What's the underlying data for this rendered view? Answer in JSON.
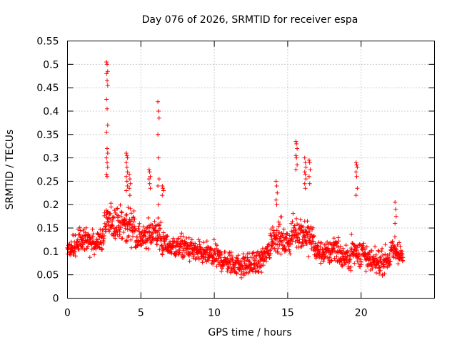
{
  "chart_data": {
    "type": "scatter",
    "title": "Day 076 of 2026, SRMTID for receiver espa",
    "xlabel": "GPS time / hours",
    "ylabel": "SRMTID / TECUs",
    "xlim": [
      0,
      25
    ],
    "ylim": [
      0,
      0.55
    ],
    "xticks": [
      0,
      5,
      10,
      15,
      20
    ],
    "xtick_labels": [
      "0",
      "5",
      "10",
      "15",
      "20"
    ],
    "yticks": [
      0,
      0.05,
      0.1,
      0.15,
      0.2,
      0.25,
      0.3,
      0.35,
      0.4,
      0.45,
      0.5,
      0.55
    ],
    "ytick_labels": [
      "0",
      "0.05",
      "0.1",
      "0.15",
      "0.2",
      "0.25",
      "0.3",
      "0.35",
      "0.4",
      "0.45",
      "0.5",
      "0.55"
    ],
    "grid": true,
    "marker": "+",
    "color": "#ff0000",
    "baseline_profile": {
      "hours": [
        0,
        1,
        2,
        3,
        4,
        5,
        6,
        7,
        8,
        9,
        10,
        11,
        12,
        13,
        14,
        15,
        16,
        17,
        18,
        19,
        20,
        21,
        22,
        22.8
      ],
      "values": [
        0.11,
        0.12,
        0.12,
        0.14,
        0.13,
        0.13,
        0.12,
        0.11,
        0.11,
        0.095,
        0.09,
        0.075,
        0.07,
        0.075,
        0.11,
        0.12,
        0.12,
        0.1,
        0.095,
        0.085,
        0.08,
        0.075,
        0.085,
        0.09
      ]
    },
    "spikes": [
      {
        "x": 2.7,
        "values": [
          0.505,
          0.5,
          0.485,
          0.48,
          0.465,
          0.455,
          0.425,
          0.405,
          0.37,
          0.355,
          0.32,
          0.31,
          0.3,
          0.29,
          0.28,
          0.265,
          0.26
        ]
      },
      {
        "x": 4.05,
        "values": [
          0.31,
          0.305,
          0.3,
          0.29,
          0.28,
          0.27,
          0.26,
          0.25,
          0.24,
          0.23
        ]
      },
      {
        "x": 4.25,
        "values": [
          0.265,
          0.255,
          0.245,
          0.235,
          0.22
        ]
      },
      {
        "x": 5.6,
        "values": [
          0.275,
          0.27,
          0.26,
          0.255,
          0.245,
          0.235
        ]
      },
      {
        "x": 6.2,
        "values": [
          0.42,
          0.4,
          0.385,
          0.35,
          0.3,
          0.255,
          0.24,
          0.2
        ]
      },
      {
        "x": 6.5,
        "values": [
          0.24,
          0.235,
          0.23,
          0.22
        ]
      },
      {
        "x": 14.25,
        "values": [
          0.25,
          0.24,
          0.225,
          0.21,
          0.2
        ]
      },
      {
        "x": 15.6,
        "values": [
          0.335,
          0.33,
          0.32,
          0.305,
          0.3,
          0.285,
          0.275
        ]
      },
      {
        "x": 16.2,
        "values": [
          0.3,
          0.29,
          0.28,
          0.27,
          0.265,
          0.255,
          0.245,
          0.235
        ]
      },
      {
        "x": 16.5,
        "values": [
          0.295,
          0.29,
          0.275,
          0.26,
          0.245
        ]
      },
      {
        "x": 19.7,
        "values": [
          0.29,
          0.285,
          0.28,
          0.27,
          0.26,
          0.235,
          0.22
        ]
      },
      {
        "x": 22.35,
        "values": [
          0.205,
          0.19,
          0.175,
          0.16
        ]
      }
    ]
  }
}
